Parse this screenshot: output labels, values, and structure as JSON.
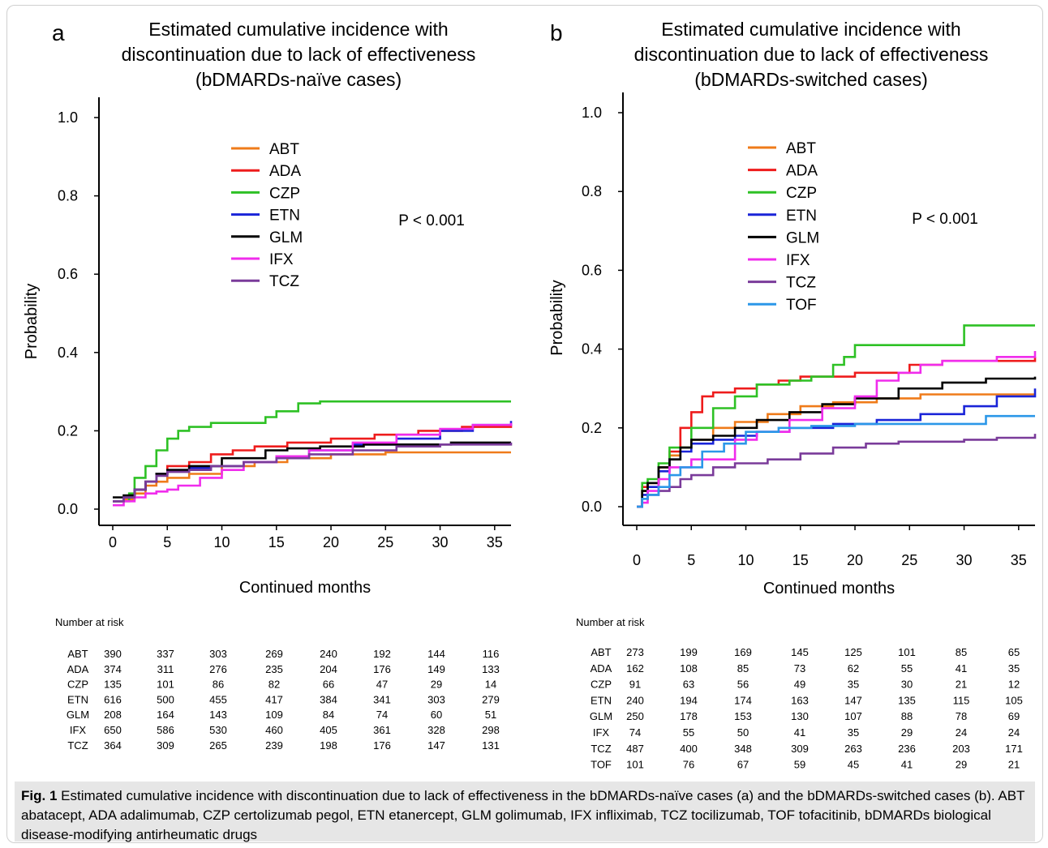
{
  "caption": {
    "label": "Fig. 1",
    "text": "Estimated cumulative incidence with discontinuation due to lack of effectiveness in the bDMARDs-naïve cases (a) and the bDMARDs-switched cases (b). ABT abatacept, ADA adalimumab, CZP certolizumab pegol, ETN etanercept, GLM golimumab, IFX infliximab, TCZ tocilizumab, TOF tofacitinib, bDMARDs biological disease-modifying antirheumatic drugs"
  },
  "colors": {
    "ABT": "#ef7b1a",
    "ADA": "#ee1c1c",
    "CZP": "#2ec125",
    "ETN": "#1a24d8",
    "GLM": "#000000",
    "IFX": "#f02cec",
    "TCZ": "#7a3b9a",
    "TOF": "#2b97e8"
  },
  "chart_data": [
    {
      "type": "line",
      "panel_label": "a",
      "title": "Estimated cumulative incidence with\ndiscontinuation due to lack of effectiveness\n(bDMARDs-naïve cases)",
      "xlabel": "Continued months",
      "ylabel": "Probability",
      "xlim": [
        0,
        36.5
      ],
      "ylim": [
        0,
        1.0
      ],
      "xticks": [
        0,
        5,
        10,
        15,
        20,
        25,
        30,
        35
      ],
      "yticks": [
        "0.0",
        "0.2",
        "0.4",
        "0.6",
        "0.8",
        "1.0"
      ],
      "annotation": "P < 0.001",
      "legend_position": "top-center",
      "series": [
        {
          "name": "ABT",
          "x": [
            0,
            1,
            2,
            3,
            4,
            5,
            7,
            10,
            13,
            16,
            20,
            25,
            30,
            36.5
          ],
          "y": [
            0.02,
            0.025,
            0.04,
            0.06,
            0.07,
            0.08,
            0.09,
            0.11,
            0.12,
            0.13,
            0.14,
            0.145,
            0.145,
            0.145
          ]
        },
        {
          "name": "ADA",
          "x": [
            0,
            1,
            2,
            3,
            4,
            5,
            7,
            9,
            11,
            13,
            16,
            20,
            24,
            28,
            32,
            36.5
          ],
          "y": [
            0.02,
            0.03,
            0.05,
            0.07,
            0.09,
            0.11,
            0.12,
            0.14,
            0.15,
            0.16,
            0.17,
            0.18,
            0.19,
            0.2,
            0.21,
            0.215
          ]
        },
        {
          "name": "CZP",
          "x": [
            0,
            1.5,
            2,
            3,
            4,
            5,
            6,
            7,
            9,
            14,
            15,
            17,
            19,
            25,
            30,
            36.5
          ],
          "y": [
            0.02,
            0.04,
            0.08,
            0.11,
            0.15,
            0.18,
            0.2,
            0.21,
            0.22,
            0.235,
            0.25,
            0.27,
            0.275,
            0.275,
            0.275,
            0.275
          ]
        },
        {
          "name": "ETN",
          "x": [
            0,
            1,
            2,
            3,
            4,
            5,
            7,
            9,
            12,
            15,
            18,
            22,
            26,
            30,
            33,
            36.5
          ],
          "y": [
            0.02,
            0.03,
            0.05,
            0.07,
            0.09,
            0.1,
            0.105,
            0.11,
            0.12,
            0.135,
            0.15,
            0.165,
            0.18,
            0.2,
            0.215,
            0.225
          ]
        },
        {
          "name": "GLM",
          "x": [
            0,
            1,
            2,
            3,
            4,
            5,
            7,
            10,
            14,
            16,
            19,
            23,
            27,
            31,
            36.5
          ],
          "y": [
            0.03,
            0.035,
            0.05,
            0.07,
            0.09,
            0.1,
            0.11,
            0.13,
            0.15,
            0.155,
            0.16,
            0.165,
            0.165,
            0.17,
            0.17
          ]
        },
        {
          "name": "IFX",
          "x": [
            0,
            1,
            2,
            3,
            4,
            5,
            6,
            8,
            10,
            12,
            15,
            18,
            22,
            26,
            30,
            33,
            36.5
          ],
          "y": [
            0.01,
            0.02,
            0.03,
            0.04,
            0.045,
            0.05,
            0.06,
            0.08,
            0.1,
            0.12,
            0.135,
            0.15,
            0.17,
            0.19,
            0.205,
            0.215,
            0.22
          ]
        },
        {
          "name": "TCZ",
          "x": [
            0,
            1,
            2,
            3,
            4,
            5,
            7,
            9,
            12,
            15,
            18,
            22,
            26,
            30,
            33,
            36.5
          ],
          "y": [
            0.02,
            0.03,
            0.05,
            0.07,
            0.085,
            0.095,
            0.1,
            0.11,
            0.12,
            0.13,
            0.14,
            0.15,
            0.16,
            0.165,
            0.165,
            0.17
          ]
        }
      ],
      "number_at_risk": {
        "title": "Number at risk",
        "rows": [
          {
            "name": "ABT",
            "values": [
              "390",
              "337",
              "303",
              "269",
              "240",
              "192",
              "144",
              "116"
            ]
          },
          {
            "name": "ADA",
            "values": [
              "374",
              "311",
              "276",
              "235",
              "204",
              "176",
              "149",
              "133"
            ]
          },
          {
            "name": "CZP",
            "values": [
              "135",
              "101",
              "86",
              "82",
              "66",
              "47",
              "29",
              "14"
            ]
          },
          {
            "name": "ETN",
            "values": [
              "616",
              "500",
              "455",
              "417",
              "384",
              "341",
              "303",
              "279"
            ]
          },
          {
            "name": "GLM",
            "values": [
              "208",
              "164",
              "143",
              "109",
              "84",
              "74",
              "60",
              "51"
            ]
          },
          {
            "name": "IFX",
            "values": [
              "650",
              "586",
              "530",
              "460",
              "405",
              "361",
              "328",
              "298"
            ]
          },
          {
            "name": "TCZ",
            "values": [
              "364",
              "309",
              "265",
              "239",
              "198",
              "176",
              "147",
              "131"
            ]
          }
        ]
      }
    },
    {
      "type": "line",
      "panel_label": "b",
      "title": "Estimated cumulative incidence with\ndiscontinuation due to lack of effectiveness\n(bDMARDs-switched cases)",
      "xlabel": "Continued months",
      "ylabel": "Probability",
      "xlim": [
        0,
        36.5
      ],
      "ylim": [
        0,
        1.0
      ],
      "xticks": [
        0,
        5,
        10,
        15,
        20,
        25,
        30,
        35
      ],
      "yticks": [
        "0.0",
        "0.2",
        "0.4",
        "0.6",
        "0.8",
        "1.0"
      ],
      "annotation": "P < 0.001",
      "legend_position": "top-center",
      "series": [
        {
          "name": "ABT",
          "x": [
            0,
            0.5,
            1,
            2,
            3,
            4,
            5,
            7,
            9,
            12,
            15,
            18,
            22,
            26,
            30,
            36.5
          ],
          "y": [
            0.0,
            0.04,
            0.06,
            0.1,
            0.13,
            0.15,
            0.17,
            0.2,
            0.215,
            0.235,
            0.255,
            0.265,
            0.275,
            0.285,
            0.285,
            0.285
          ]
        },
        {
          "name": "ADA",
          "x": [
            0,
            0.5,
            1,
            2,
            3,
            4,
            5,
            6,
            7,
            9,
            11,
            13,
            15,
            20,
            25,
            28,
            36.5
          ],
          "y": [
            0.0,
            0.05,
            0.06,
            0.1,
            0.14,
            0.2,
            0.24,
            0.28,
            0.29,
            0.3,
            0.31,
            0.32,
            0.33,
            0.34,
            0.36,
            0.37,
            0.38
          ]
        },
        {
          "name": "CZP",
          "x": [
            0,
            0.5,
            1,
            2,
            3,
            5,
            7,
            9,
            11,
            14,
            16,
            18,
            19,
            20,
            25,
            30,
            36.5
          ],
          "y": [
            0.0,
            0.06,
            0.07,
            0.11,
            0.15,
            0.2,
            0.25,
            0.28,
            0.31,
            0.32,
            0.33,
            0.36,
            0.38,
            0.41,
            0.41,
            0.46,
            0.46
          ]
        },
        {
          "name": "ETN",
          "x": [
            0,
            0.5,
            1,
            2,
            3,
            4,
            5,
            7,
            9,
            11,
            14,
            18,
            22,
            26,
            30,
            33,
            36.5
          ],
          "y": [
            0.0,
            0.03,
            0.05,
            0.09,
            0.12,
            0.14,
            0.16,
            0.17,
            0.18,
            0.19,
            0.2,
            0.21,
            0.22,
            0.235,
            0.255,
            0.28,
            0.3
          ]
        },
        {
          "name": "GLM",
          "x": [
            0,
            0.5,
            1,
            2,
            3,
            4,
            5,
            7,
            9,
            11,
            14,
            17,
            20,
            24,
            28,
            32,
            36.5
          ],
          "y": [
            0.0,
            0.04,
            0.06,
            0.1,
            0.12,
            0.15,
            0.17,
            0.18,
            0.2,
            0.22,
            0.24,
            0.26,
            0.275,
            0.3,
            0.315,
            0.325,
            0.33
          ]
        },
        {
          "name": "IFX",
          "x": [
            0,
            0.5,
            1,
            2,
            3,
            5,
            7,
            9,
            11,
            14,
            17,
            20,
            22,
            24,
            26,
            28,
            33,
            36.5
          ],
          "y": [
            0.0,
            0.01,
            0.04,
            0.07,
            0.1,
            0.12,
            0.12,
            0.17,
            0.19,
            0.22,
            0.25,
            0.28,
            0.32,
            0.34,
            0.36,
            0.37,
            0.38,
            0.395
          ]
        },
        {
          "name": "TCZ",
          "x": [
            0,
            0.5,
            1,
            2,
            3,
            4,
            5,
            7,
            9,
            12,
            15,
            18,
            21,
            24,
            30,
            33,
            36.5
          ],
          "y": [
            0.0,
            0.02,
            0.03,
            0.04,
            0.05,
            0.07,
            0.08,
            0.1,
            0.11,
            0.12,
            0.135,
            0.15,
            0.16,
            0.165,
            0.17,
            0.175,
            0.185
          ]
        },
        {
          "name": "TOF",
          "x": [
            0,
            0.5,
            1,
            2,
            3,
            4,
            6,
            8,
            10,
            13,
            16,
            20,
            25,
            30,
            32,
            36.5
          ],
          "y": [
            0.0,
            0.02,
            0.03,
            0.05,
            0.08,
            0.1,
            0.14,
            0.16,
            0.19,
            0.2,
            0.205,
            0.21,
            0.21,
            0.21,
            0.23,
            0.23
          ]
        }
      ],
      "number_at_risk": {
        "title": "Number at risk",
        "rows": [
          {
            "name": "ABT",
            "values": [
              "273",
              "199",
              "169",
              "145",
              "125",
              "101",
              "85",
              "65"
            ]
          },
          {
            "name": "ADA",
            "values": [
              "162",
              "108",
              "85",
              "73",
              "62",
              "55",
              "41",
              "35"
            ]
          },
          {
            "name": "CZP",
            "values": [
              "91",
              "63",
              "56",
              "49",
              "35",
              "30",
              "21",
              "12"
            ]
          },
          {
            "name": "ETN",
            "values": [
              "240",
              "194",
              "174",
              "163",
              "147",
              "135",
              "115",
              "105"
            ]
          },
          {
            "name": "GLM",
            "values": [
              "250",
              "178",
              "153",
              "130",
              "107",
              "88",
              "78",
              "69"
            ]
          },
          {
            "name": "IFX",
            "values": [
              "74",
              "55",
              "50",
              "41",
              "35",
              "29",
              "24",
              "24"
            ]
          },
          {
            "name": "TCZ",
            "values": [
              "487",
              "400",
              "348",
              "309",
              "263",
              "236",
              "203",
              "171"
            ]
          },
          {
            "name": "TOF",
            "values": [
              "101",
              "76",
              "67",
              "59",
              "45",
              "41",
              "29",
              "21"
            ]
          }
        ]
      }
    }
  ]
}
